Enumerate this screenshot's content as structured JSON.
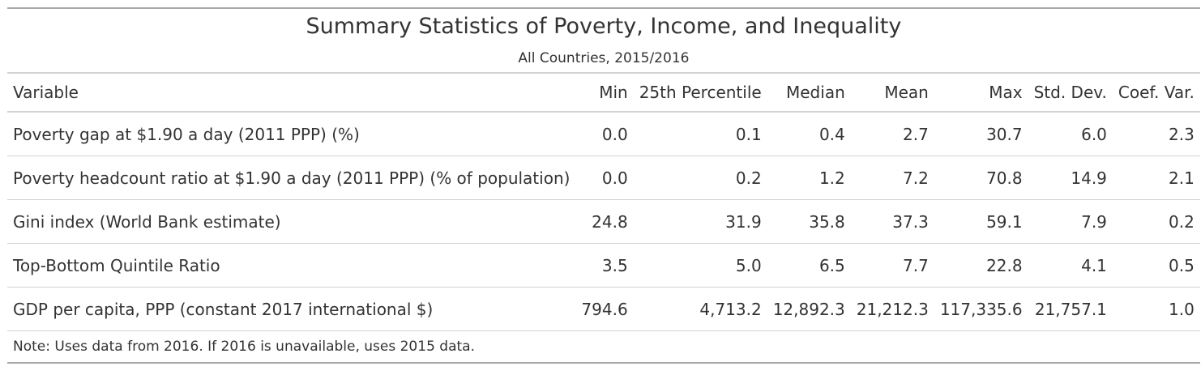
{
  "table": {
    "title": "Summary Statistics of Poverty, Income, and Inequality",
    "subtitle": "All Countries, 2015/2016",
    "columns": [
      "Variable",
      "Min",
      "25th Percentile",
      "Median",
      "Mean",
      "Max",
      "Std. Dev.",
      "Coef. Var."
    ],
    "rows": [
      [
        "Poverty gap at $1.90 a day (2011 PPP) (%)",
        "0.0",
        "0.1",
        "0.4",
        "2.7",
        "30.7",
        "6.0",
        "2.3"
      ],
      [
        "Poverty headcount ratio at $1.90 a day (2011 PPP) (% of population)",
        "0.0",
        "0.2",
        "1.2",
        "7.2",
        "70.8",
        "14.9",
        "2.1"
      ],
      [
        "Gini index (World Bank estimate)",
        "24.8",
        "31.9",
        "35.8",
        "37.3",
        "59.1",
        "7.9",
        "0.2"
      ],
      [
        "Top-Bottom Quintile Ratio",
        "3.5",
        "5.0",
        "6.5",
        "7.7",
        "22.8",
        "4.1",
        "0.5"
      ],
      [
        "GDP per capita, PPP (constant 2017 international $)",
        "794.6",
        "4,713.2",
        "12,892.3",
        "21,212.3",
        "117,335.6",
        "21,757.1",
        "1.0"
      ]
    ],
    "note": "Note: Uses data from 2016. If 2016 is unavailable, uses 2015 data."
  }
}
